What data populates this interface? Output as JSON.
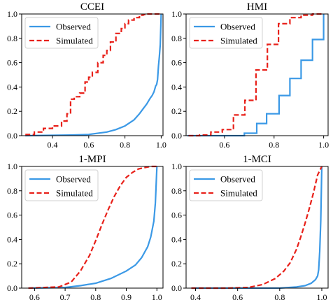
{
  "chart_data": [
    {
      "type": "line",
      "title": "CCEI",
      "xlabel": "",
      "ylabel": "",
      "xlim": [
        0.23,
        1.01
      ],
      "ylim": [
        0,
        1
      ],
      "xticks": [
        0.4,
        0.6,
        0.8,
        1.0
      ],
      "xtick_labels": [
        "0.4",
        "0.6",
        "0.8",
        "1.0"
      ],
      "yticks": [
        0,
        0.2,
        0.4,
        0.6,
        0.8,
        1.0
      ],
      "ytick_labels": [
        "0.0",
        "0.2",
        "0.4",
        "0.6",
        "0.8",
        "1.0"
      ],
      "legend": {
        "position": "top-left",
        "entries": [
          "Observed",
          "Simulated"
        ]
      },
      "grid": false,
      "series": [
        {
          "name": "Observed",
          "color": "#3b99e6",
          "style": "solid",
          "step": false,
          "x": [
            0.25,
            0.5,
            0.6,
            0.7,
            0.75,
            0.8,
            0.85,
            0.88,
            0.9,
            0.92,
            0.94,
            0.95,
            0.96,
            0.97,
            0.975,
            0.98,
            0.985,
            0.99,
            0.995,
            1.0
          ],
          "y": [
            0.0,
            0.005,
            0.01,
            0.03,
            0.05,
            0.08,
            0.13,
            0.18,
            0.22,
            0.26,
            0.31,
            0.33,
            0.36,
            0.41,
            0.42,
            0.46,
            0.57,
            0.65,
            0.75,
            1.0
          ]
        },
        {
          "name": "Simulated",
          "color": "#e8211a",
          "style": "dashed",
          "step": true,
          "x": [
            0.25,
            0.3,
            0.35,
            0.4,
            0.45,
            0.48,
            0.5,
            0.52,
            0.55,
            0.58,
            0.6,
            0.62,
            0.65,
            0.68,
            0.7,
            0.72,
            0.75,
            0.78,
            0.8,
            0.82,
            0.85,
            0.88,
            0.9,
            0.92,
            0.95,
            1.0
          ],
          "y": [
            0.01,
            0.03,
            0.06,
            0.08,
            0.12,
            0.18,
            0.3,
            0.32,
            0.35,
            0.44,
            0.48,
            0.52,
            0.6,
            0.66,
            0.7,
            0.77,
            0.84,
            0.88,
            0.92,
            0.95,
            0.97,
            0.99,
            0.995,
            1.0,
            1.0,
            1.0
          ]
        }
      ]
    },
    {
      "type": "line",
      "title": "HMI",
      "xlabel": "",
      "ylabel": "",
      "xlim": [
        0.445,
        1.018
      ],
      "ylim": [
        0,
        1
      ],
      "xticks": [
        0.6,
        0.8,
        1.0
      ],
      "xtick_labels": [
        "0.6",
        "0.8",
        "1.0"
      ],
      "yticks": [
        0,
        0.2,
        0.4,
        0.6,
        0.8,
        1.0
      ],
      "ytick_labels": [
        "0.0",
        "0.2",
        "0.4",
        "0.6",
        "0.8",
        "1.0"
      ],
      "legend": {
        "position": "top-left",
        "entries": [
          "Observed",
          "Simulated"
        ]
      },
      "grid": false,
      "series": [
        {
          "name": "Observed",
          "color": "#3b99e6",
          "style": "solid",
          "step": true,
          "x": [
            0.45,
            0.68,
            0.73,
            0.77,
            0.82,
            0.864,
            0.909,
            0.955,
            1.0
          ],
          "y": [
            0.0,
            0.02,
            0.1,
            0.18,
            0.33,
            0.47,
            0.62,
            0.79,
            1.0
          ]
        },
        {
          "name": "Simulated",
          "color": "#e8211a",
          "style": "dashed",
          "step": true,
          "x": [
            0.455,
            0.5,
            0.545,
            0.591,
            0.636,
            0.682,
            0.727,
            0.773,
            0.818,
            0.864,
            0.909,
            0.955,
            1.0
          ],
          "y": [
            0.0,
            0.005,
            0.03,
            0.05,
            0.17,
            0.29,
            0.54,
            0.75,
            0.92,
            0.97,
            0.99,
            1.0,
            1.0
          ]
        }
      ]
    },
    {
      "type": "line",
      "title": "1-MPI",
      "xlabel": "",
      "ylabel": "",
      "xlim": [
        0.558,
        1.02
      ],
      "ylim": [
        0,
        1
      ],
      "xticks": [
        0.6,
        0.7,
        0.8,
        0.9,
        1.0
      ],
      "xtick_labels": [
        "0.6",
        "0.7",
        "0.8",
        "0.9",
        "1.0"
      ],
      "yticks": [
        0,
        0.2,
        0.4,
        0.6,
        0.8,
        1.0
      ],
      "ytick_labels": [
        "0.0",
        "0.2",
        "0.4",
        "0.6",
        "0.8",
        "1.0"
      ],
      "legend": {
        "position": "top-left",
        "entries": [
          "Observed",
          "Simulated"
        ]
      },
      "grid": false,
      "series": [
        {
          "name": "Observed",
          "color": "#3b99e6",
          "style": "solid",
          "step": false,
          "x": [
            0.58,
            0.7,
            0.75,
            0.8,
            0.85,
            0.9,
            0.93,
            0.95,
            0.97,
            0.98,
            0.99,
            0.995,
            1.0
          ],
          "y": [
            0.0,
            0.005,
            0.02,
            0.04,
            0.08,
            0.14,
            0.19,
            0.25,
            0.34,
            0.42,
            0.55,
            0.7,
            1.0
          ]
        },
        {
          "name": "Simulated",
          "color": "#e8211a",
          "style": "dashed",
          "step": false,
          "x": [
            0.58,
            0.68,
            0.72,
            0.75,
            0.78,
            0.8,
            0.82,
            0.84,
            0.86,
            0.88,
            0.9,
            0.92,
            0.94,
            0.96,
            0.98,
            1.0
          ],
          "y": [
            0.0,
            0.01,
            0.05,
            0.14,
            0.27,
            0.39,
            0.52,
            0.64,
            0.75,
            0.84,
            0.91,
            0.95,
            0.98,
            0.99,
            1.0,
            1.0
          ]
        }
      ]
    },
    {
      "type": "line",
      "title": "1-MCI",
      "xlabel": "",
      "ylabel": "",
      "xlim": [
        0.355,
        1.03
      ],
      "ylim": [
        0,
        1
      ],
      "xticks": [
        0.4,
        0.6,
        0.8,
        1.0
      ],
      "xtick_labels": [
        "0.4",
        "0.6",
        "0.8",
        "1.0"
      ],
      "yticks": [
        0,
        0.2,
        0.4,
        0.6,
        0.8,
        1.0
      ],
      "ytick_labels": [
        "0.0",
        "0.2",
        "0.4",
        "0.6",
        "0.8",
        "1.0"
      ],
      "legend": {
        "position": "top-left",
        "entries": [
          "Observed",
          "Simulated"
        ]
      },
      "grid": false,
      "series": [
        {
          "name": "Observed",
          "color": "#3b99e6",
          "style": "solid",
          "step": false,
          "x": [
            0.38,
            0.8,
            0.88,
            0.92,
            0.95,
            0.97,
            0.98,
            0.985,
            0.99,
            0.995,
            1.0
          ],
          "y": [
            0.0,
            0.0,
            0.01,
            0.02,
            0.04,
            0.07,
            0.1,
            0.15,
            0.3,
            0.55,
            1.0
          ]
        },
        {
          "name": "Simulated",
          "color": "#e8211a",
          "style": "dashed",
          "step": false,
          "x": [
            0.38,
            0.55,
            0.65,
            0.72,
            0.78,
            0.82,
            0.85,
            0.88,
            0.9,
            0.92,
            0.94,
            0.96,
            0.98,
            1.0
          ],
          "y": [
            0.0,
            0.0,
            0.005,
            0.03,
            0.08,
            0.14,
            0.21,
            0.32,
            0.42,
            0.53,
            0.65,
            0.78,
            0.93,
            1.0
          ]
        }
      ]
    }
  ]
}
